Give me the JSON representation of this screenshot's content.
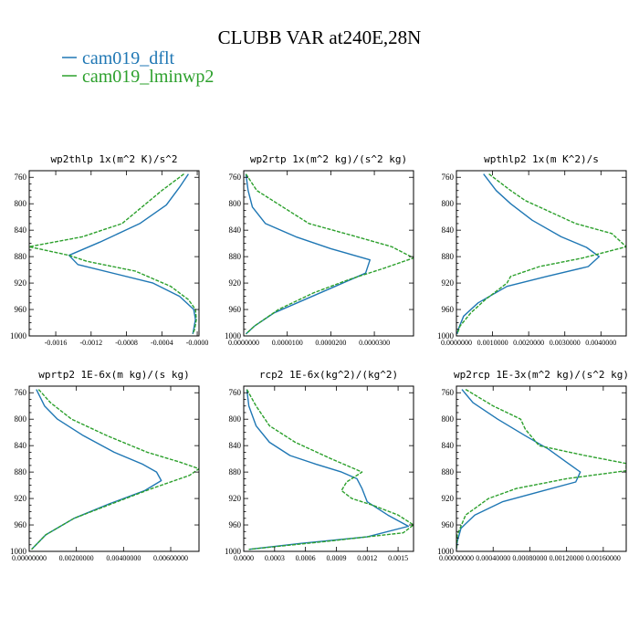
{
  "figure": {
    "title": "CLUBB VAR at240E,28N",
    "legend": [
      {
        "label": "cam019_dflt",
        "color": "#1f77b4",
        "dash": "solid"
      },
      {
        "label": "cam019_lminwp2",
        "color": "#2ca02c",
        "dash": "dashed"
      }
    ]
  },
  "chart_data": [
    {
      "type": "line",
      "title": "wp2thlp  1x(m^2 K)/s^2",
      "ylim": [
        1000,
        750
      ],
      "yticks": [
        760,
        800,
        840,
        880,
        920,
        960,
        1000
      ],
      "xlim": [
        -0.0019,
        2e-05
      ],
      "xticks": [
        -0.0016,
        -0.0012,
        -0.0008,
        -0.0004,
        0.0
      ],
      "xtick_labels": [
        "-0.0016",
        "-0.0012",
        "-0.0008",
        "-0.0004",
        "-0.0000"
      ],
      "series": [
        {
          "name": "cam019_dflt",
          "points": [
            [
              -0.0001,
              755
            ],
            [
              -0.0002,
              775
            ],
            [
              -0.00035,
              802
            ],
            [
              -0.00065,
              830
            ],
            [
              -0.0011,
              858
            ],
            [
              -0.00145,
              878
            ],
            [
              -0.00135,
              892
            ],
            [
              -0.0005,
              920
            ],
            [
              -0.0002,
              940
            ],
            [
              -4e-05,
              960
            ],
            [
              -2e-05,
              975
            ],
            [
              -4e-05,
              990
            ],
            [
              -5e-05,
              997
            ]
          ]
        },
        {
          "name": "cam019_lminwp2",
          "points": [
            [
              -0.00015,
              755
            ],
            [
              -0.0004,
              780
            ],
            [
              -0.00085,
              830
            ],
            [
              -0.0013,
              850
            ],
            [
              -0.0019,
              865
            ],
            [
              -0.00145,
              878
            ],
            [
              -0.00125,
              887
            ],
            [
              -0.0007,
              902
            ],
            [
              -0.0003,
              925
            ],
            [
              -0.0001,
              945
            ],
            [
              -2e-05,
              960
            ],
            [
              -1e-05,
              975
            ],
            [
              -3e-05,
              990
            ],
            [
              -5e-05,
              997
            ]
          ]
        }
      ]
    },
    {
      "type": "line",
      "title": "wp2rtp  1x(m^2 kg)/(s^2 kg)",
      "ylim": [
        1000,
        750
      ],
      "yticks": [
        760,
        800,
        840,
        880,
        920,
        960,
        1000
      ],
      "xlim": [
        0.0,
        3.9e-05
      ],
      "xticks": [
        0.0,
        1e-05,
        2e-05,
        3e-05
      ],
      "xtick_labels": [
        "0.0000000",
        "0.0000100",
        "0.0000200",
        "0.0000300"
      ],
      "series": [
        {
          "name": "cam019_dflt",
          "points": [
            [
              5e-07,
              755
            ],
            [
              1e-06,
              780
            ],
            [
              2e-06,
              805
            ],
            [
              5e-06,
              830
            ],
            [
              1.2e-05,
              850
            ],
            [
              2e-05,
              868
            ],
            [
              2.9e-05,
              885
            ],
            [
              2.8e-05,
              905
            ],
            [
              2.1e-05,
              925
            ],
            [
              1.4e-05,
              945
            ],
            [
              7e-06,
              965
            ],
            [
              2.5e-06,
              985
            ],
            [
              5e-07,
              997
            ]
          ]
        },
        {
          "name": "cam019_lminwp2",
          "points": [
            [
              5e-07,
              755
            ],
            [
              3e-06,
              780
            ],
            [
              9e-06,
              805
            ],
            [
              1.5e-05,
              830
            ],
            [
              2.6e-05,
              850
            ],
            [
              3.4e-05,
              865
            ],
            [
              3.9e-05,
              882
            ],
            [
              3.2e-05,
              898
            ],
            [
              2.4e-05,
              915
            ],
            [
              1.6e-05,
              935
            ],
            [
              8e-06,
              960
            ],
            [
              2.5e-06,
              985
            ],
            [
              5e-07,
              997
            ]
          ]
        }
      ]
    },
    {
      "type": "line",
      "title": "wpthlp2  1x(m K^2)/s",
      "ylim": [
        1000,
        750
      ],
      "yticks": [
        760,
        800,
        840,
        880,
        920,
        960,
        1000
      ],
      "xlim": [
        0.0,
        0.0047
      ],
      "xticks": [
        0.0,
        0.001,
        0.002,
        0.003,
        0.004
      ],
      "xtick_labels": [
        "0.0000000",
        "0.0010000",
        "0.0020000",
        "0.0030000",
        "0.0040000"
      ],
      "series": [
        {
          "name": "cam019_dflt",
          "points": [
            [
              0.00075,
              755
            ],
            [
              0.0011,
              780
            ],
            [
              0.0015,
              800
            ],
            [
              0.0021,
              825
            ],
            [
              0.0029,
              850
            ],
            [
              0.0036,
              866
            ],
            [
              0.00395,
              880
            ],
            [
              0.00365,
              895
            ],
            [
              0.0025,
              910
            ],
            [
              0.0014,
              925
            ],
            [
              0.0006,
              950
            ],
            [
              0.0002,
              970
            ],
            [
              5e-05,
              990
            ],
            [
              2e-05,
              997
            ]
          ]
        },
        {
          "name": "cam019_lminwp2",
          "points": [
            [
              0.0009,
              755
            ],
            [
              0.0015,
              780
            ],
            [
              0.0019,
              795
            ],
            [
              0.0033,
              830
            ],
            [
              0.0043,
              845
            ],
            [
              0.0047,
              865
            ],
            [
              0.0035,
              882
            ],
            [
              0.0023,
              895
            ],
            [
              0.0015,
              910
            ],
            [
              0.0014,
              920
            ],
            [
              0.0008,
              945
            ],
            [
              0.0004,
              965
            ],
            [
              0.0001,
              985
            ],
            [
              2e-05,
              997
            ]
          ]
        }
      ]
    },
    {
      "type": "line",
      "title": "wprtp2  1E-6x(m kg)/(s kg)",
      "ylim": [
        1000,
        750
      ],
      "yticks": [
        760,
        800,
        840,
        880,
        920,
        960,
        1000
      ],
      "xlim": [
        0.0,
        0.0072
      ],
      "xticks": [
        0.0,
        0.002,
        0.004,
        0.006
      ],
      "xtick_labels": [
        "0.00000000",
        "0.00200000",
        "0.00400000",
        "0.00600000"
      ],
      "series": [
        {
          "name": "cam019_dflt",
          "points": [
            [
              0.0003,
              755
            ],
            [
              0.00065,
              780
            ],
            [
              0.0012,
              800
            ],
            [
              0.0023,
              825
            ],
            [
              0.0036,
              850
            ],
            [
              0.0048,
              868
            ],
            [
              0.0054,
              880
            ],
            [
              0.0056,
              893
            ],
            [
              0.0049,
              908
            ],
            [
              0.0034,
              928
            ],
            [
              0.0019,
              950
            ],
            [
              0.0007,
              975
            ],
            [
              0.0001,
              997
            ]
          ]
        },
        {
          "name": "cam019_lminwp2",
          "points": [
            [
              0.0004,
              755
            ],
            [
              0.0009,
              775
            ],
            [
              0.0018,
              800
            ],
            [
              0.0033,
              825
            ],
            [
              0.005,
              850
            ],
            [
              0.0064,
              865
            ],
            [
              0.0072,
              875
            ],
            [
              0.0068,
              885
            ],
            [
              0.0052,
              905
            ],
            [
              0.0035,
              928
            ],
            [
              0.0019,
              950
            ],
            [
              0.0007,
              975
            ],
            [
              0.0001,
              997
            ]
          ]
        }
      ]
    },
    {
      "type": "line",
      "title": "rcp2  1E-6x(kg^2)/(kg^2)",
      "ylim": [
        1000,
        750
      ],
      "yticks": [
        760,
        800,
        840,
        880,
        920,
        960,
        1000
      ],
      "xlim": [
        0.0,
        0.00165
      ],
      "xticks": [
        0.0,
        0.0003,
        0.0006,
        0.0009,
        0.0012,
        0.0015
      ],
      "xtick_labels": [
        "0.0000",
        "0.0003",
        "0.0006",
        "0.0009",
        "0.0012",
        "0.0015"
      ],
      "series": [
        {
          "name": "cam019_dflt",
          "points": [
            [
              3e-05,
              755
            ],
            [
              5e-05,
              780
            ],
            [
              0.00012,
              810
            ],
            [
              0.00025,
              835
            ],
            [
              0.00045,
              855
            ],
            [
              0.0007,
              868
            ],
            [
              0.00095,
              880
            ],
            [
              0.0011,
              890
            ],
            [
              0.00115,
              905
            ],
            [
              0.0012,
              925
            ],
            [
              0.0014,
              945
            ],
            [
              0.0016,
              962
            ],
            [
              0.0012,
              978
            ],
            [
              0.00055,
              988
            ],
            [
              5e-05,
              997
            ]
          ]
        },
        {
          "name": "cam019_lminwp2",
          "points": [
            [
              3e-05,
              755
            ],
            [
              0.00012,
              780
            ],
            [
              0.00025,
              810
            ],
            [
              0.0005,
              835
            ],
            [
              0.00085,
              860
            ],
            [
              0.00115,
              880
            ],
            [
              0.001,
              895
            ],
            [
              0.00095,
              908
            ],
            [
              0.00105,
              920
            ],
            [
              0.00125,
              930
            ],
            [
              0.0015,
              945
            ],
            [
              0.00165,
              960
            ],
            [
              0.00155,
              972
            ],
            [
              0.0008,
              985
            ],
            [
              5e-05,
              997
            ]
          ]
        }
      ]
    },
    {
      "type": "line",
      "title": "wp2rcp  1E-3x(m^2 kg)/(s^2 kg)",
      "ylim": [
        1000,
        750
      ],
      "yticks": [
        760,
        800,
        840,
        880,
        920,
        960,
        1000
      ],
      "xlim": [
        0.0,
        0.00185
      ],
      "xticks": [
        0.0,
        0.0004,
        0.0008,
        0.0012,
        0.0016
      ],
      "xtick_labels": [
        "0.00000000",
        "0.00040000",
        "0.00080000",
        "0.00120000",
        "0.00160000"
      ],
      "series": [
        {
          "name": "cam019_dflt",
          "points": [
            [
              6e-05,
              755
            ],
            [
              0.00018,
              775
            ],
            [
              0.00045,
              800
            ],
            [
              0.00075,
              825
            ],
            [
              0.001,
              845
            ],
            [
              0.0012,
              865
            ],
            [
              0.00135,
              880
            ],
            [
              0.0013,
              895
            ],
            [
              0.0009,
              910
            ],
            [
              0.0005,
              925
            ],
            [
              0.0002,
              945
            ],
            [
              5e-05,
              965
            ],
            [
              1e-05,
              985
            ],
            [
              0.0,
              997
            ]
          ]
        },
        {
          "name": "cam019_lminwp2",
          "points": [
            [
              0.0001,
              755
            ],
            [
              0.0004,
              780
            ],
            [
              0.0007,
              800
            ],
            [
              0.00075,
              815
            ],
            [
              0.0009,
              840
            ],
            [
              0.0014,
              855
            ],
            [
              0.00185,
              867
            ],
            [
              0.00185,
              878
            ],
            [
              0.0012,
              890
            ],
            [
              0.00065,
              905
            ],
            [
              0.00035,
              920
            ],
            [
              0.0001,
              945
            ],
            [
              1e-05,
              975
            ],
            [
              0.0,
              997
            ]
          ]
        }
      ]
    }
  ]
}
